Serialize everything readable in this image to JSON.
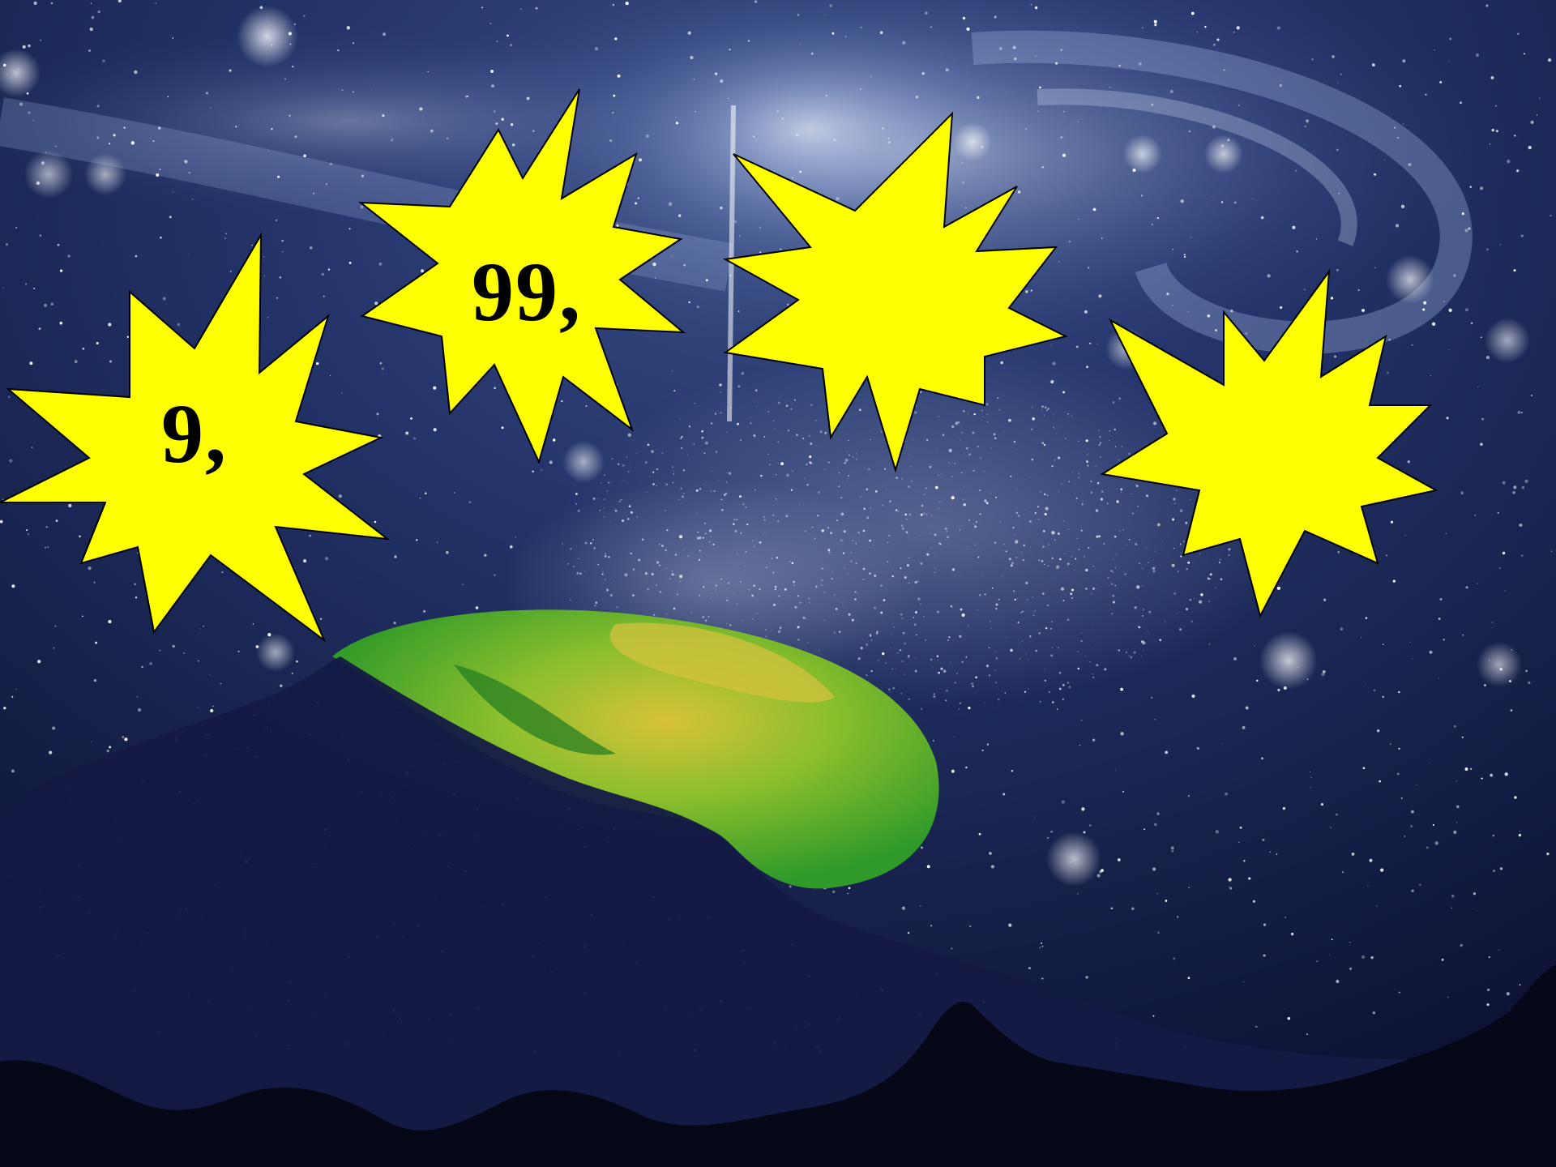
{
  "slide": {
    "background": "night-sky-galaxy-planet",
    "colors": {
      "burst_fill": "#ffff00",
      "burst_stroke": "#000000",
      "label": "#000000",
      "sky": "#0a0f2a",
      "planet_green": "#3fae2a",
      "planet_yellow": "#d8c23a"
    }
  },
  "bursts": [
    {
      "label": "9,"
    },
    {
      "label": "99,"
    },
    {
      "label": ""
    },
    {
      "label": ""
    }
  ]
}
